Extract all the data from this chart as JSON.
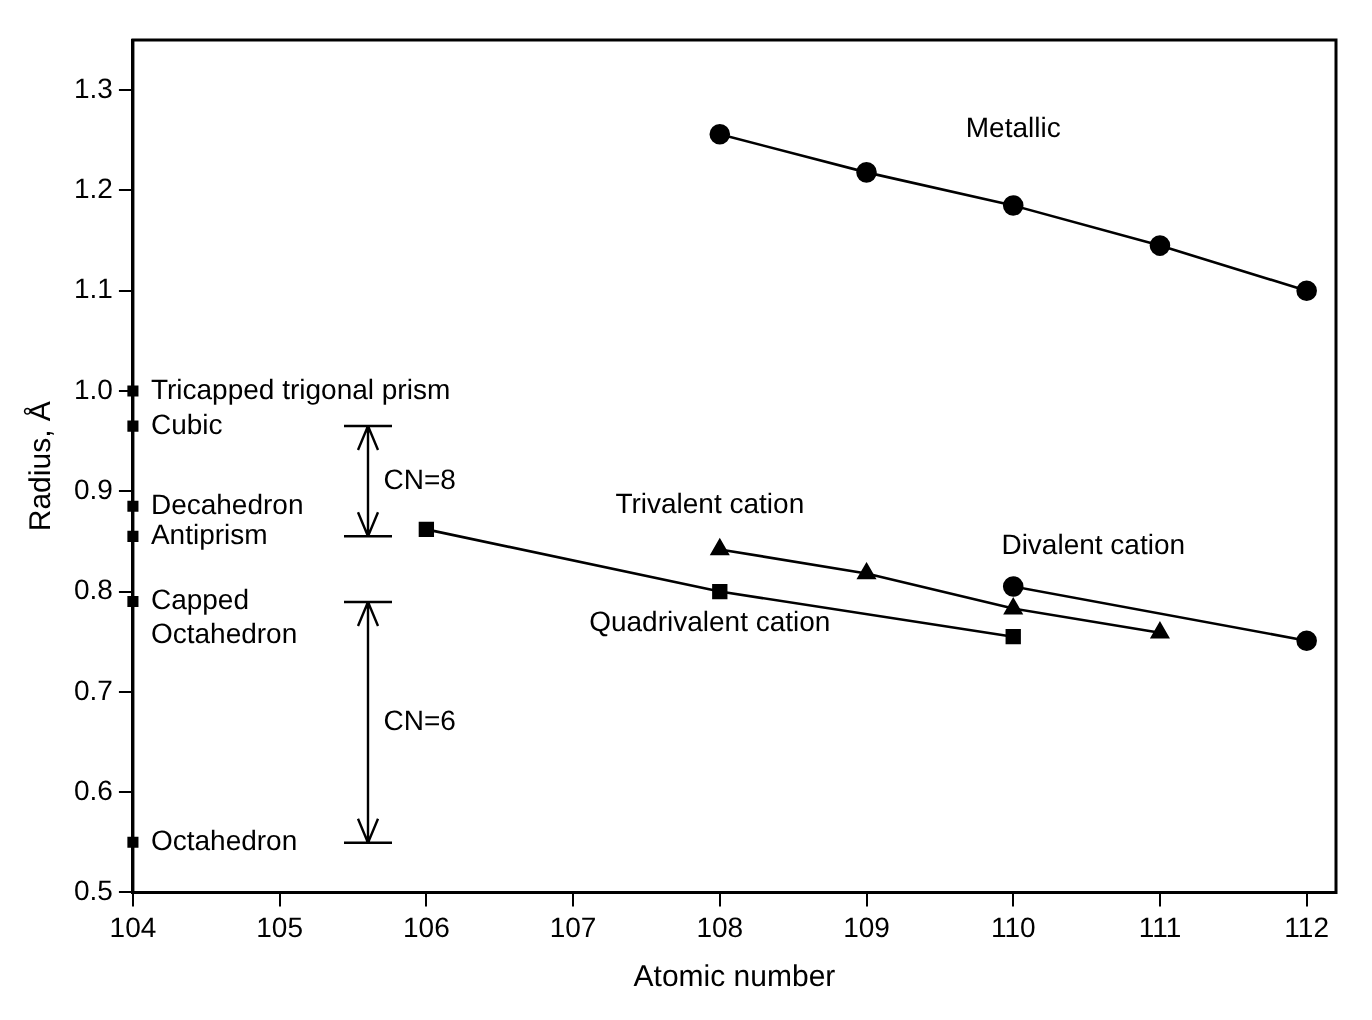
{
  "chart_data": {
    "type": "line",
    "xlabel": "Atomic number",
    "ylabel": "Radius, Å",
    "xlim": [
      104,
      112.2
    ],
    "xticks": [
      104,
      105,
      106,
      107,
      108,
      109,
      110,
      111,
      112
    ],
    "ylim": [
      0.5,
      1.35
    ],
    "yticks": [
      {
        "value": 0.5,
        "label": "0.5"
      },
      {
        "value": 0.6,
        "label": "0.6"
      },
      {
        "value": 0.7,
        "label": "0.7"
      },
      {
        "value": 0.8,
        "label": "0.8"
      },
      {
        "value": 0.9,
        "label": "0.9"
      },
      {
        "value": 1.0,
        "label": "1.0"
      },
      {
        "value": 1.1,
        "label": "1.1"
      },
      {
        "value": 1.2,
        "label": "1.2"
      },
      {
        "value": 1.3,
        "label": "1.3"
      }
    ],
    "grid": false,
    "legend": false,
    "series": [
      {
        "name": "Metallic",
        "color": "#000000",
        "marker": "circle",
        "x": [
          108,
          109,
          110,
          111,
          112
        ],
        "values": [
          1.256,
          1.218,
          1.185,
          1.145,
          1.1
        ]
      },
      {
        "name": "Trivalent cation",
        "color": "#000000",
        "marker": "triangle",
        "x": [
          108,
          109,
          110,
          111
        ],
        "values": [
          0.842,
          0.818,
          0.783,
          0.759
        ]
      },
      {
        "name": "Divalent cation",
        "color": "#000000",
        "marker": "circle",
        "x": [
          110,
          112
        ],
        "values": [
          0.805,
          0.751
        ]
      },
      {
        "name": "Quadrivalent cation",
        "color": "#000000",
        "marker": "square",
        "x": [
          106,
          108,
          110
        ],
        "values": [
          0.862,
          0.8,
          0.755
        ]
      },
      {
        "type": "scatter",
        "color": "#000000",
        "marker": "square",
        "x": [
          104,
          104,
          104,
          104,
          104,
          104
        ],
        "values": [
          1.0,
          0.965,
          0.885,
          0.855,
          0.79,
          0.55
        ],
        "value_labels": [
          "Tricapped trigonal prism",
          "Cubic",
          "Decahedron",
          "Antiprism",
          "Capped Octahedron",
          "Octahedron"
        ]
      }
    ],
    "annotations": [
      "CN=8",
      "CN=6"
    ]
  }
}
